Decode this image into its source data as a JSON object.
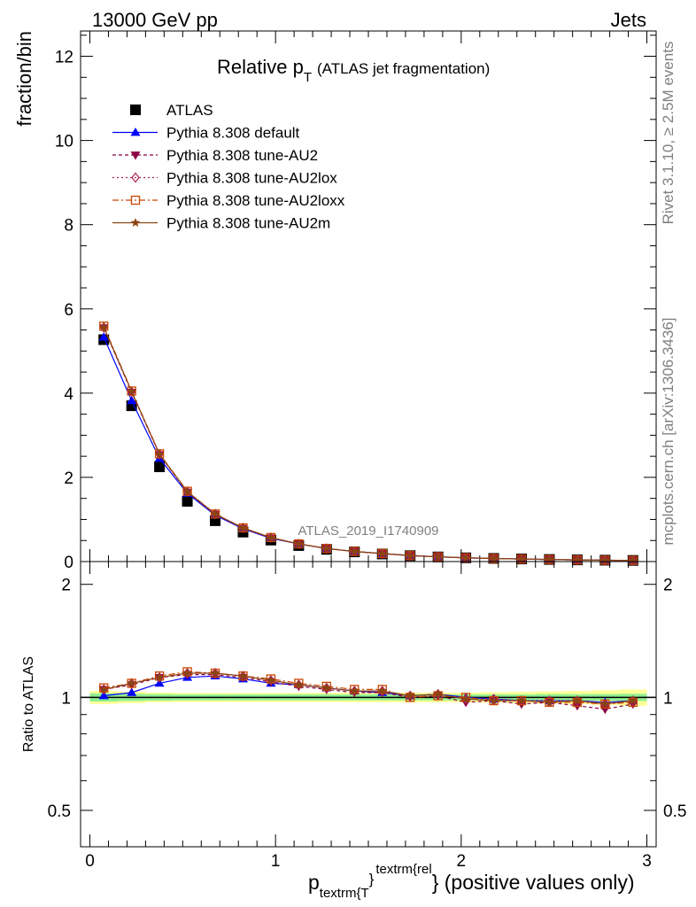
{
  "header": {
    "left_title": "13000 GeV pp",
    "right_title": "Jets"
  },
  "side": {
    "rivet": "Rivet 3.1.10, ≥ 2.5M events",
    "mcplots": "mcplots.cern.ch [arXiv:1306.3436]"
  },
  "chart_data": [
    {
      "type": "line",
      "title_main": "Relative p",
      "title_sub": "T",
      "title_rest": "(ATLAS jet fragmentation)",
      "watermark": "ATLAS_2019_I1740909",
      "ylabel": "fraction/bin",
      "ylim": [
        0,
        12.6
      ],
      "yticks": [
        0,
        2,
        4,
        6,
        8,
        10,
        12
      ],
      "xlim": [
        -0.05,
        3.05
      ],
      "legend_position": "top-left",
      "x": [
        0.075,
        0.225,
        0.375,
        0.525,
        0.675,
        0.825,
        0.975,
        1.125,
        1.275,
        1.425,
        1.575,
        1.725,
        1.875,
        2.025,
        2.175,
        2.325,
        2.475,
        2.625,
        2.775,
        2.925
      ],
      "series": [
        {
          "name": "ATLAS",
          "color": "#000000",
          "marker": "square",
          "dash": "",
          "values": [
            5.27,
            3.7,
            2.25,
            1.43,
            0.97,
            0.7,
            0.51,
            0.38,
            0.29,
            0.23,
            0.18,
            0.14,
            0.11,
            0.089,
            0.075,
            0.062,
            0.05,
            0.04,
            0.033,
            0.027
          ]
        },
        {
          "name": "Pythia 8.308 default",
          "color": "#0000ff",
          "marker": "triangle-up",
          "dash": "",
          "values": [
            5.33,
            3.82,
            2.45,
            1.62,
            1.1,
            0.78,
            0.55,
            0.42,
            0.31,
            0.24,
            0.19,
            0.145,
            0.113,
            0.09,
            0.074,
            0.061,
            0.05,
            0.04,
            0.032,
            0.027
          ]
        },
        {
          "name": "Pythia 8.308 tune-AU2",
          "color": "#8b0045",
          "marker": "triangle-down",
          "dash": "4,3",
          "values": [
            5.55,
            4.02,
            2.54,
            1.65,
            1.12,
            0.79,
            0.56,
            0.42,
            0.31,
            0.24,
            0.19,
            0.141,
            0.112,
            0.087,
            0.073,
            0.06,
            0.049,
            0.039,
            0.031,
            0.026
          ]
        },
        {
          "name": "Pythia 8.308 tune-AU2lox",
          "color": "#b0225a",
          "marker": "diamond-open",
          "dash": "2,3",
          "values": [
            5.56,
            4.03,
            2.55,
            1.66,
            1.13,
            0.8,
            0.57,
            0.42,
            0.31,
            0.24,
            0.19,
            0.142,
            0.113,
            0.089,
            0.074,
            0.061,
            0.049,
            0.04,
            0.032,
            0.027
          ]
        },
        {
          "name": "Pythia 8.308 tune-AU2loxx",
          "color": "#cc4400",
          "marker": "square-open",
          "dash": "7,3,2,3",
          "values": [
            5.59,
            4.05,
            2.56,
            1.67,
            1.13,
            0.8,
            0.57,
            0.42,
            0.31,
            0.24,
            0.19,
            0.141,
            0.112,
            0.089,
            0.073,
            0.061,
            0.049,
            0.039,
            0.032,
            0.026
          ]
        },
        {
          "name": "Pythia 8.308 tune-AU2m",
          "color": "#8b4513",
          "marker": "star",
          "dash": "",
          "values": [
            5.56,
            4.04,
            2.55,
            1.66,
            1.13,
            0.8,
            0.57,
            0.42,
            0.31,
            0.24,
            0.19,
            0.142,
            0.113,
            0.089,
            0.074,
            0.061,
            0.049,
            0.04,
            0.032,
            0.027
          ]
        }
      ]
    },
    {
      "type": "line",
      "ylabel": "Ratio to ATLAS",
      "ylim": [
        0.4,
        2.3
      ],
      "yscale": "log",
      "yticks": [
        0.5,
        1,
        2
      ],
      "ytick_labels": [
        "0.5",
        "1",
        "2"
      ],
      "xlim": [
        -0.05,
        3.05
      ],
      "xticks": [
        0,
        1,
        2,
        3
      ],
      "xtick_labels": [
        "0",
        "1",
        "2",
        "3"
      ],
      "xlabel_main": "p",
      "xlabel_sub": "textrm{T",
      "xlabel_sup1": "}",
      "xlabel_sup2": "textrm{rel",
      "xlabel_rest": "} (positive values only)",
      "band_inner_color": "#90ee90",
      "band_outer_color": "#ffff99",
      "band_inner": [
        0.025,
        0.022,
        0.02,
        0.018,
        0.018,
        0.018,
        0.018,
        0.018,
        0.018,
        0.018,
        0.018,
        0.018,
        0.018,
        0.018,
        0.018,
        0.018,
        0.02,
        0.02,
        0.02,
        0.022
      ],
      "band_outer": [
        0.04,
        0.035,
        0.03,
        0.028,
        0.028,
        0.028,
        0.028,
        0.028,
        0.028,
        0.03,
        0.03,
        0.03,
        0.03,
        0.03,
        0.032,
        0.035,
        0.038,
        0.04,
        0.045,
        0.05
      ],
      "series": [
        {
          "name": "Pythia 8.308 default",
          "color": "#0000ff",
          "marker": "triangle-up",
          "dash": "",
          "values": [
            1.01,
            1.03,
            1.09,
            1.13,
            1.14,
            1.12,
            1.09,
            1.08,
            1.06,
            1.04,
            1.03,
            1.01,
            1.02,
            1.0,
            0.99,
            0.98,
            0.98,
            0.98,
            0.97,
            0.98
          ]
        },
        {
          "name": "Pythia 8.308 tune-AU2",
          "color": "#8b0045",
          "marker": "triangle-down",
          "dash": "4,3",
          "values": [
            1.05,
            1.08,
            1.13,
            1.15,
            1.15,
            1.13,
            1.1,
            1.07,
            1.05,
            1.03,
            1.03,
            1.0,
            1.01,
            0.97,
            0.98,
            0.96,
            0.97,
            0.95,
            0.93,
            0.96
          ]
        },
        {
          "name": "Pythia 8.308 tune-AU2lox",
          "color": "#b0225a",
          "marker": "diamond-open",
          "dash": "2,3",
          "values": [
            1.05,
            1.09,
            1.13,
            1.16,
            1.16,
            1.14,
            1.11,
            1.08,
            1.06,
            1.04,
            1.04,
            1.01,
            1.02,
            0.99,
            0.99,
            0.98,
            0.98,
            0.98,
            0.96,
            0.98
          ]
        },
        {
          "name": "Pythia 8.308 tune-AU2loxx",
          "color": "#cc4400",
          "marker": "square-open",
          "dash": "7,3,2,3",
          "values": [
            1.06,
            1.09,
            1.14,
            1.17,
            1.16,
            1.14,
            1.12,
            1.09,
            1.07,
            1.05,
            1.05,
            1.0,
            1.01,
            1.0,
            0.98,
            0.98,
            0.97,
            0.97,
            0.96,
            0.97
          ]
        },
        {
          "name": "Pythia 8.308 tune-AU2m",
          "color": "#8b4513",
          "marker": "star",
          "dash": "",
          "values": [
            1.05,
            1.09,
            1.13,
            1.16,
            1.16,
            1.14,
            1.11,
            1.08,
            1.06,
            1.04,
            1.04,
            1.01,
            1.02,
            0.99,
            0.98,
            0.98,
            0.97,
            0.98,
            0.96,
            0.98
          ]
        }
      ]
    }
  ]
}
